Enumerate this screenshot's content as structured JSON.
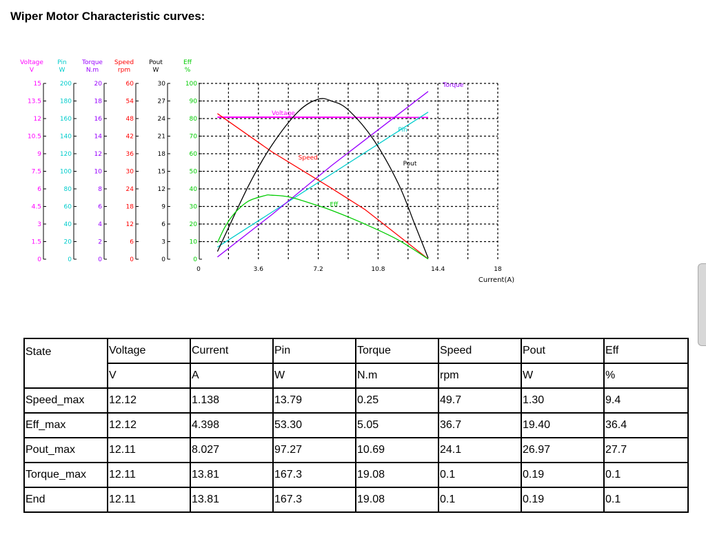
{
  "page": {
    "title": "Wiper Motor Characteristic curves:"
  },
  "chart_data": {
    "type": "line",
    "xlabel": "Current(A)",
    "x_ticks": [
      "0",
      "3.6",
      "7.2",
      "10.8",
      "14.4",
      "18"
    ],
    "xlim": [
      0,
      18
    ],
    "grid": true,
    "axes": [
      {
        "name": "Voltage",
        "unit": "V",
        "color": "#ff00ff",
        "max": 15,
        "ticks": [
          "0",
          "1.5",
          "3",
          "4.5",
          "6",
          "7.5",
          "9",
          "10.5",
          "12",
          "13.5",
          "15"
        ]
      },
      {
        "name": "Pin",
        "unit": "W",
        "color": "#00cccc",
        "max": 200,
        "ticks": [
          "0",
          "20",
          "40",
          "60",
          "80",
          "100",
          "120",
          "140",
          "160",
          "180",
          "200"
        ]
      },
      {
        "name": "Torque",
        "unit": "N.m",
        "color": "#9900ff",
        "max": 20,
        "ticks": [
          "0",
          "2",
          "4",
          "6",
          "8",
          "10",
          "12",
          "14",
          "16",
          "18",
          "20"
        ]
      },
      {
        "name": "Speed",
        "unit": "rpm",
        "color": "#ff0000",
        "max": 60,
        "ticks": [
          "0",
          "6",
          "12",
          "18",
          "24",
          "30",
          "36",
          "42",
          "48",
          "54",
          "60"
        ]
      },
      {
        "name": "Pout",
        "unit": "W",
        "color": "#000000",
        "max": 30,
        "ticks": [
          "0",
          "3",
          "6",
          "9",
          "12",
          "15",
          "18",
          "21",
          "24",
          "27",
          "30"
        ]
      },
      {
        "name": "Eff",
        "unit": "%",
        "color": "#00cc00",
        "max": 100,
        "ticks": [
          "0",
          "10",
          "20",
          "30",
          "40",
          "50",
          "60",
          "70",
          "80",
          "90",
          "100"
        ]
      }
    ],
    "series": [
      {
        "name": "Voltage",
        "axis": 0,
        "color": "#ff00ff",
        "x": [
          1.138,
          13.81
        ],
        "y": [
          12.12,
          12.11
        ]
      },
      {
        "name": "Pin",
        "axis": 1,
        "color": "#00cccc",
        "x": [
          1.138,
          4.398,
          8.027,
          13.81
        ],
        "y": [
          13.79,
          53.3,
          97.27,
          167.3
        ]
      },
      {
        "name": "Torque",
        "axis": 2,
        "color": "#9900ff",
        "x": [
          1.138,
          4.398,
          8.027,
          13.81
        ],
        "y": [
          0.25,
          5.05,
          10.69,
          19.08
        ]
      },
      {
        "name": "Speed",
        "axis": 3,
        "color": "#ff0000",
        "x": [
          1.138,
          4.398,
          8.027,
          10.0,
          13.81
        ],
        "y": [
          49.7,
          36.7,
          24.1,
          17.0,
          0.1
        ]
      },
      {
        "name": "Pout",
        "axis": 4,
        "color": "#000000",
        "x": [
          1.138,
          3.0,
          4.398,
          6.0,
          7.2,
          8.027,
          9.0,
          10.5,
          12.0,
          13.0,
          13.81
        ],
        "y": [
          1.3,
          12.5,
          19.4,
          25.2,
          27.3,
          26.97,
          25.5,
          20.5,
          13.0,
          6.0,
          0.19
        ]
      },
      {
        "name": "Eff",
        "axis": 5,
        "color": "#00cc00",
        "x": [
          1.138,
          1.6,
          2.2,
          3.0,
          4.0,
          4.398,
          5.5,
          7.0,
          8.027,
          10.0,
          12.0,
          13.81
        ],
        "y": [
          9.4,
          18.5,
          26.5,
          33.0,
          36.2,
          36.4,
          35.3,
          31.0,
          27.7,
          20.0,
          11.0,
          0.1
        ]
      }
    ],
    "annotations": [
      {
        "text": "Torque",
        "color": "#9900ff",
        "x": 14.7,
        "y": 19.6,
        "axis": 2
      },
      {
        "text": "Voltage",
        "color": "#ff00ff",
        "x": 4.4,
        "y": 12.3,
        "axis": 0
      },
      {
        "text": "Pin",
        "color": "#00cccc",
        "x": 12.0,
        "y": 145,
        "axis": 1
      },
      {
        "text": "Speed",
        "color": "#ff0000",
        "x": 6.0,
        "y": 34.0,
        "axis": 3
      },
      {
        "text": "Pout",
        "color": "#000000",
        "x": 12.3,
        "y": 16.0,
        "axis": 4
      },
      {
        "text": "Eff",
        "color": "#00cc00",
        "x": 7.9,
        "y": 30.0,
        "axis": 5
      }
    ]
  },
  "table": {
    "header": [
      "State",
      "Voltage",
      "Current",
      "Pin",
      "Torque",
      "Speed",
      "Pout",
      "Eff"
    ],
    "units": [
      "",
      "V",
      "A",
      "W",
      "N.m",
      "rpm",
      "W",
      "%"
    ],
    "rows": [
      [
        "Speed_max",
        "12.12",
        "1.138",
        "13.79",
        "0.25",
        "49.7",
        "1.30",
        "9.4"
      ],
      [
        "Eff_max",
        "12.12",
        "4.398",
        "53.30",
        "5.05",
        "36.7",
        "19.40",
        "36.4"
      ],
      [
        "Pout_max",
        "12.11",
        "8.027",
        "97.27",
        "10.69",
        "24.1",
        "26.97",
        "27.7"
      ],
      [
        "Torque_max",
        "12.11",
        "13.81",
        "167.3",
        "19.08",
        "0.1",
        "0.19",
        "0.1"
      ],
      [
        "End",
        "12.11",
        "13.81",
        "167.3",
        "19.08",
        "0.1",
        "0.19",
        "0.1"
      ]
    ]
  }
}
